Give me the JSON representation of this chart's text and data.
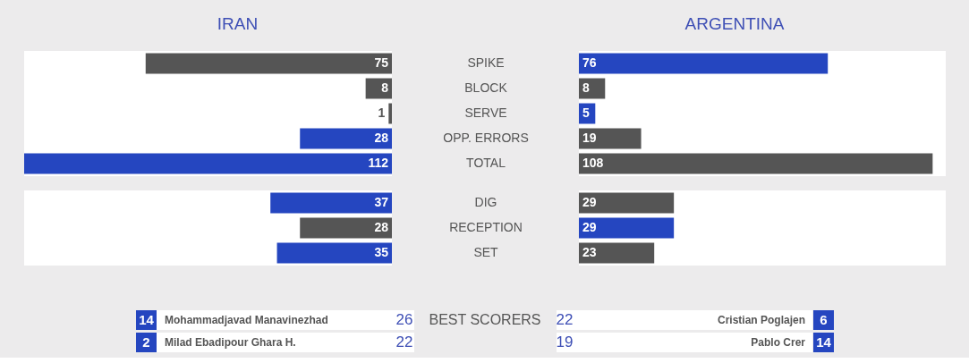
{
  "chart_data": [
    {
      "type": "bar",
      "orientation": "horizontal",
      "title": "IRAN",
      "categories": [
        "SPIKE",
        "BLOCK",
        "SERVE",
        "OPP. ERRORS",
        "TOTAL"
      ],
      "values": [
        75,
        8,
        1,
        28,
        112
      ],
      "colors": [
        "#555555",
        "#555555",
        "#555555",
        "#2546c0",
        "#2546c0"
      ],
      "xlim": [
        112,
        0
      ],
      "data_labels": true,
      "tick_labels": "y"
    },
    {
      "type": "bar",
      "orientation": "horizontal",
      "title": "ARGENTINA",
      "categories": [
        "SPIKE",
        "BLOCK",
        "SERVE",
        "OPP. ERRORS",
        "TOTAL"
      ],
      "values": [
        76,
        8,
        5,
        19,
        108
      ],
      "colors": [
        "#2546c0",
        "#555555",
        "#2546c0",
        "#555555",
        "#555555"
      ],
      "xlim": [
        0,
        112
      ],
      "data_labels": true,
      "tick_labels": false
    },
    {
      "type": "bar",
      "orientation": "horizontal",
      "categories": [
        "DIG",
        "RECEPTION",
        "SET"
      ],
      "values": [
        37,
        28,
        35
      ],
      "colors": [
        "#2546c0",
        "#555555",
        "#2546c0"
      ],
      "xlim": [
        112,
        0
      ],
      "data_labels": true,
      "tick_labels": "y"
    },
    {
      "type": "bar",
      "orientation": "horizontal",
      "categories": [
        "DIG",
        "RECEPTION",
        "SET"
      ],
      "values": [
        29,
        29,
        23
      ],
      "colors": [
        "#555555",
        "#2546c0",
        "#555555"
      ],
      "xlim": [
        0,
        112
      ],
      "data_labels": true,
      "tick_labels": false
    },
    {
      "type": "other",
      "title": "BEST SCORERS",
      "annotations": [
        "14",
        "Mohammadjavad Manavinezhad",
        "26",
        "22",
        "Cristian Poglajen",
        "6",
        "2",
        "Milad Ebadipour Ghara H.",
        "22",
        "19",
        "Pablo Crer",
        "14"
      ]
    }
  ]
}
